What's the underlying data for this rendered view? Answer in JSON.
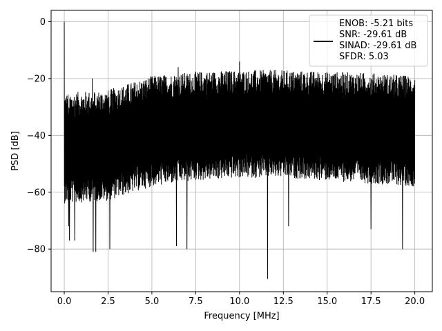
{
  "chart_data": {
    "type": "line",
    "title": "",
    "xlabel": "Frequency [MHz]",
    "ylabel": "PSD [dB]",
    "xlim": [
      -0.75,
      21.0
    ],
    "ylim": [
      -95,
      4
    ],
    "x_ticks": [
      0.0,
      2.5,
      5.0,
      7.5,
      10.0,
      12.5,
      15.0,
      17.5,
      20.0
    ],
    "x_tick_labels": [
      "0.0",
      "2.5",
      "5.0",
      "7.5",
      "10.0",
      "12.5",
      "15.0",
      "17.5",
      "20.0"
    ],
    "y_ticks": [
      0,
      -20,
      -40,
      -60,
      -80
    ],
    "y_tick_labels": [
      "0",
      "−20",
      "−40",
      "−60",
      "−80"
    ],
    "grid": true,
    "legend_position": "top-right",
    "legend_entries": [
      "ENOB: -5.21 bits",
      "SNR: -29.61 dB",
      "SINAD: -29.61 dB",
      "SFDR: 5.03"
    ],
    "series": [
      {
        "color": "#000000",
        "x_range": [
          0.0,
          20.0
        ],
        "upper_envelope": [
          [
            0.0,
            -25
          ],
          [
            2.5,
            -24
          ],
          [
            5.0,
            -19
          ],
          [
            7.5,
            -17.5
          ],
          [
            10.0,
            -17
          ],
          [
            12.5,
            -17
          ],
          [
            15.0,
            -17.5
          ],
          [
            17.5,
            -18
          ],
          [
            20.0,
            -19
          ]
        ],
        "lower_envelope": [
          [
            0.0,
            -64
          ],
          [
            2.5,
            -63
          ],
          [
            5.0,
            -58
          ],
          [
            7.5,
            -56
          ],
          [
            10.0,
            -55
          ],
          [
            12.5,
            -55
          ],
          [
            15.0,
            -56
          ],
          [
            17.5,
            -57
          ],
          [
            20.0,
            -58
          ]
        ],
        "peaks": [
          [
            0.0,
            0.0
          ],
          [
            1.6,
            -20
          ],
          [
            7.0,
            -11
          ],
          [
            6.5,
            -16
          ],
          [
            10.0,
            -14
          ]
        ],
        "dips": [
          [
            0.25,
            -72
          ],
          [
            0.3,
            -77
          ],
          [
            0.6,
            -77
          ],
          [
            1.65,
            -81
          ],
          [
            1.8,
            -81
          ],
          [
            2.6,
            -80
          ],
          [
            6.4,
            -79
          ],
          [
            7.0,
            -80
          ],
          [
            11.6,
            -90.5
          ],
          [
            12.8,
            -72
          ],
          [
            17.5,
            -73
          ],
          [
            19.3,
            -80
          ]
        ]
      }
    ]
  }
}
